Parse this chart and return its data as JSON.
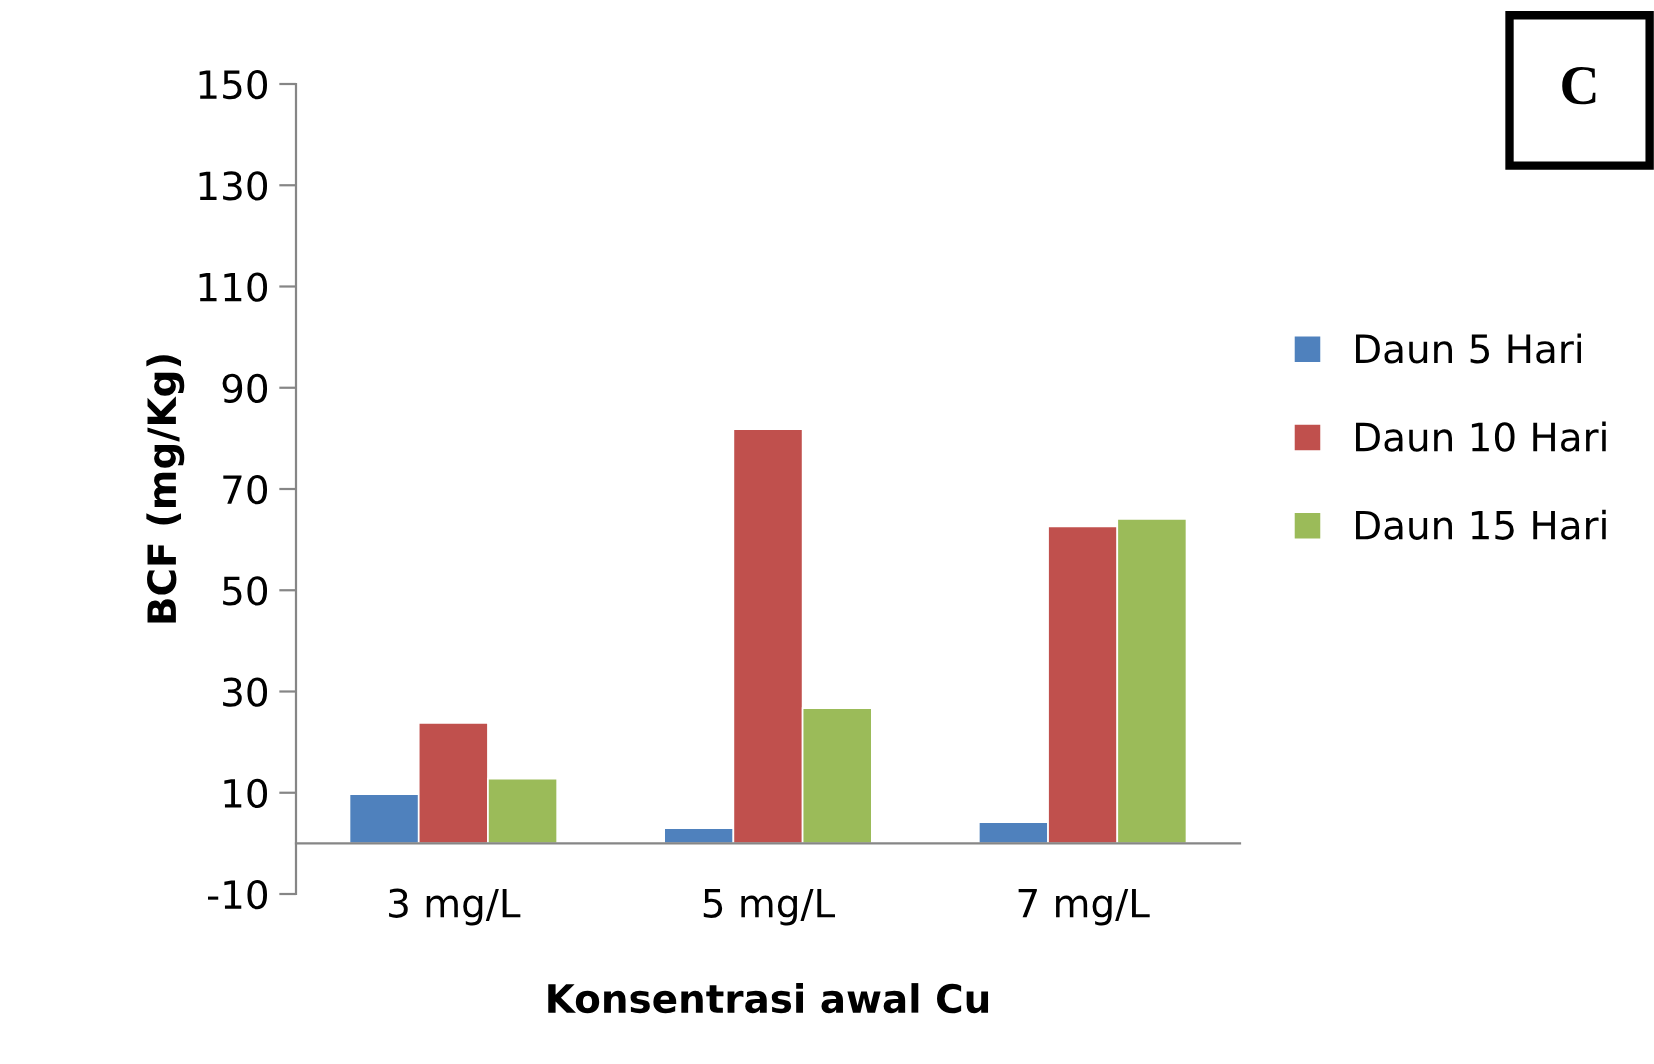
{
  "chart_data": {
    "type": "bar",
    "xlabel": "Konsentrasi awal Cu",
    "ylabel": "BCF (mg/Kg)",
    "categories": [
      "3 mg/L",
      "5 mg/L",
      "7 mg/L"
    ],
    "series": [
      {
        "name": "Daun 5 Hari",
        "color": "#4f81bd",
        "values": [
          9.7,
          3.0,
          4.2
        ]
      },
      {
        "name": "Daun 10 Hari",
        "color": "#c0504d",
        "values": [
          23.8,
          81.8,
          62.6
        ]
      },
      {
        "name": "Daun 15 Hari",
        "color": "#9bbb59",
        "values": [
          12.8,
          26.7,
          64.1
        ]
      }
    ],
    "ylim": [
      -10,
      150
    ],
    "yticks": [
      -10,
      10,
      30,
      50,
      70,
      90,
      110,
      130,
      150
    ],
    "grid": false,
    "legend": "right",
    "annotations": [
      "C"
    ]
  }
}
